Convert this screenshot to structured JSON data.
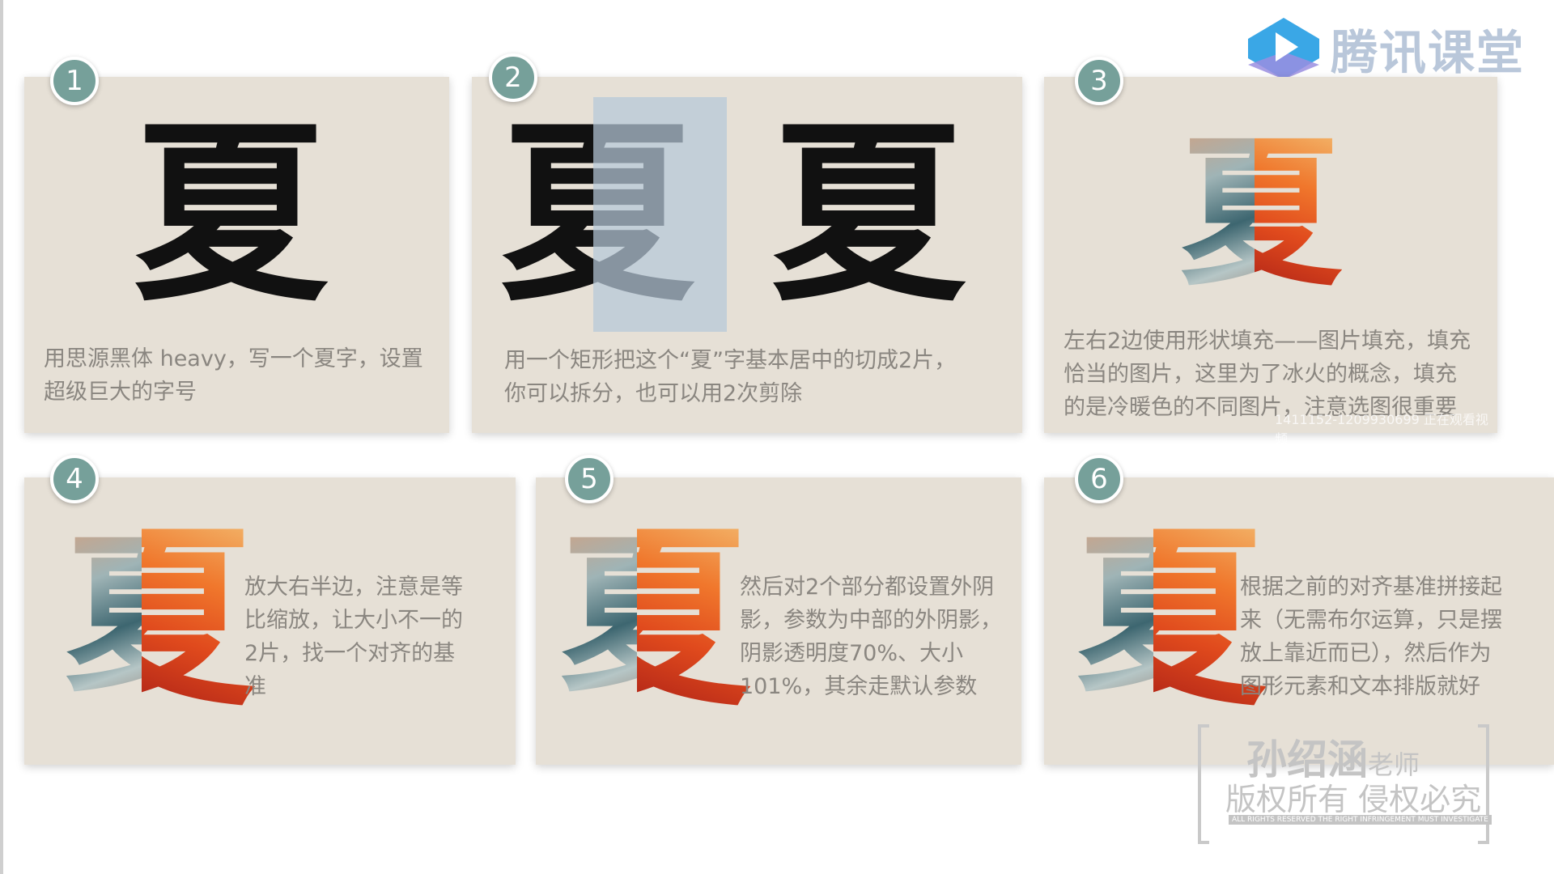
{
  "logo": {
    "text": "腾讯课堂",
    "icon": "play-icon"
  },
  "cards": [
    {
      "number": "1",
      "glyph": "夏",
      "desc_lines": [
        "用思源黑体 heavy，写一个夏字，设置",
        "超级巨大的字号"
      ]
    },
    {
      "number": "2",
      "glyph_left": "夏",
      "glyph_right": "夏",
      "desc_lines": [
        "用一个矩形把这个“夏”字基本居中的切成2片，",
        "你可以拆分，也可以用2次剪除"
      ]
    },
    {
      "number": "3",
      "glyph": "夏",
      "desc_lines": [
        "左右2边使用形状填充——图片填充，填充",
        "恰当的图片，这里为了冰火的概念，填充",
        "的是冷暖色的不同图片，注意选图很重要"
      ],
      "overlay_id": "1411152-1209930699 正在观看视频"
    },
    {
      "number": "4",
      "glyph": "夏",
      "desc_lines": [
        "放大右半边，注意是等",
        "比缩放，让大小不一的",
        "2片，找一个对齐的基",
        "准"
      ]
    },
    {
      "number": "5",
      "glyph": "夏",
      "desc_lines": [
        "然后对2个部分都设置外阴",
        "影，参数为中部的外阴影，",
        "阴影透明度70%、大小",
        "101%，其余走默认参数"
      ]
    },
    {
      "number": "6",
      "glyph": "夏",
      "desc_lines": [
        "根据之前的对齐基准拼接起",
        "来（无需布尔运算，只是摆",
        "放上靠近而已），然后作为",
        "图形元素和文本排版就好"
      ]
    }
  ],
  "watermark": {
    "name": "孙绍涵",
    "title": "老师",
    "rights": "版权所有 侵权必究",
    "rights_en": "ALL RIGHTS RESERVED THE RIGHT INFRINGEMENT MUST INVESTIGATE"
  },
  "colors": {
    "card_bg": "#e6e0d6",
    "badge": "#76a09a",
    "text": "#8a8680",
    "cut_rect": "#b6c8d8"
  }
}
